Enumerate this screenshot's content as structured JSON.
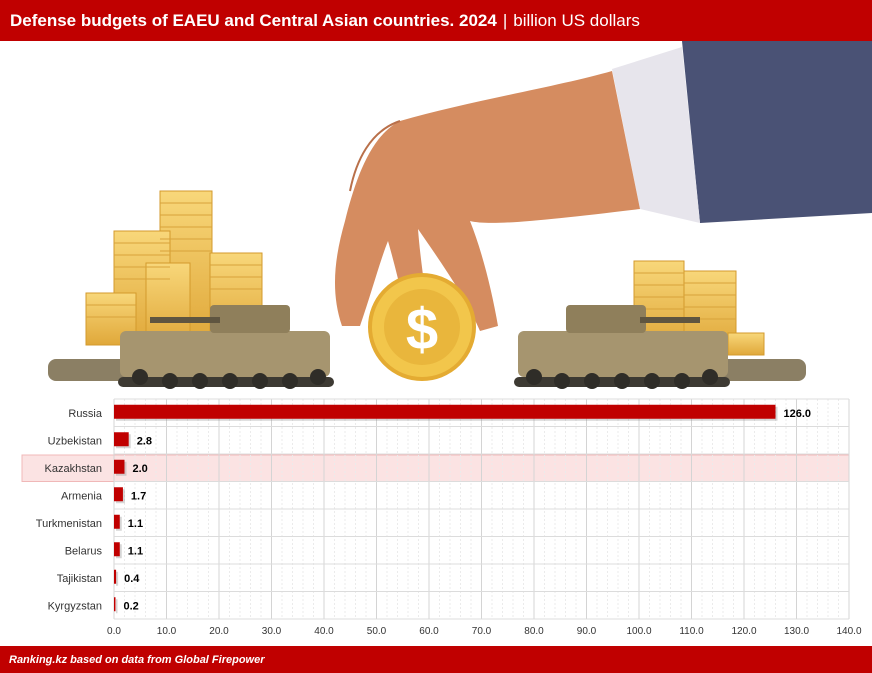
{
  "header": {
    "title": "Defense budgets of EAEU and Central Asian countries. 2024",
    "separator": "|",
    "unit": "billion US dollars"
  },
  "footer": {
    "source": "Ranking.kz based on data from Global Firepower"
  },
  "colors": {
    "brand": "#c00000",
    "bar": "#c00000",
    "highlight_row": "#fbe3e3"
  },
  "illustration": {
    "icons": [
      "hand-icon",
      "dollar-coin-icon",
      "coin-stack-icon",
      "tank-icon"
    ]
  },
  "chart_data": {
    "type": "bar",
    "orientation": "horizontal",
    "categories": [
      "Russia",
      "Uzbekistan",
      "Kazakhstan",
      "Armenia",
      "Turkmenistan",
      "Belarus",
      "Tajikistan",
      "Kyrgyzstan"
    ],
    "values": [
      126.0,
      2.8,
      2.0,
      1.7,
      1.1,
      1.1,
      0.4,
      0.2
    ],
    "value_labels": [
      "126.0",
      "2.8",
      "2.0",
      "1.7",
      "1.1",
      "1.1",
      "0.4",
      "0.2"
    ],
    "highlighted": "Kazakhstan",
    "xlim": [
      0,
      140
    ],
    "xticks": [
      "0.0",
      "10.0",
      "20.0",
      "30.0",
      "40.0",
      "50.0",
      "60.0",
      "70.0",
      "80.0",
      "90.0",
      "100.0",
      "110.0",
      "120.0",
      "130.0",
      "140.0"
    ],
    "grid": true,
    "title": "",
    "xlabel": "",
    "ylabel": ""
  }
}
